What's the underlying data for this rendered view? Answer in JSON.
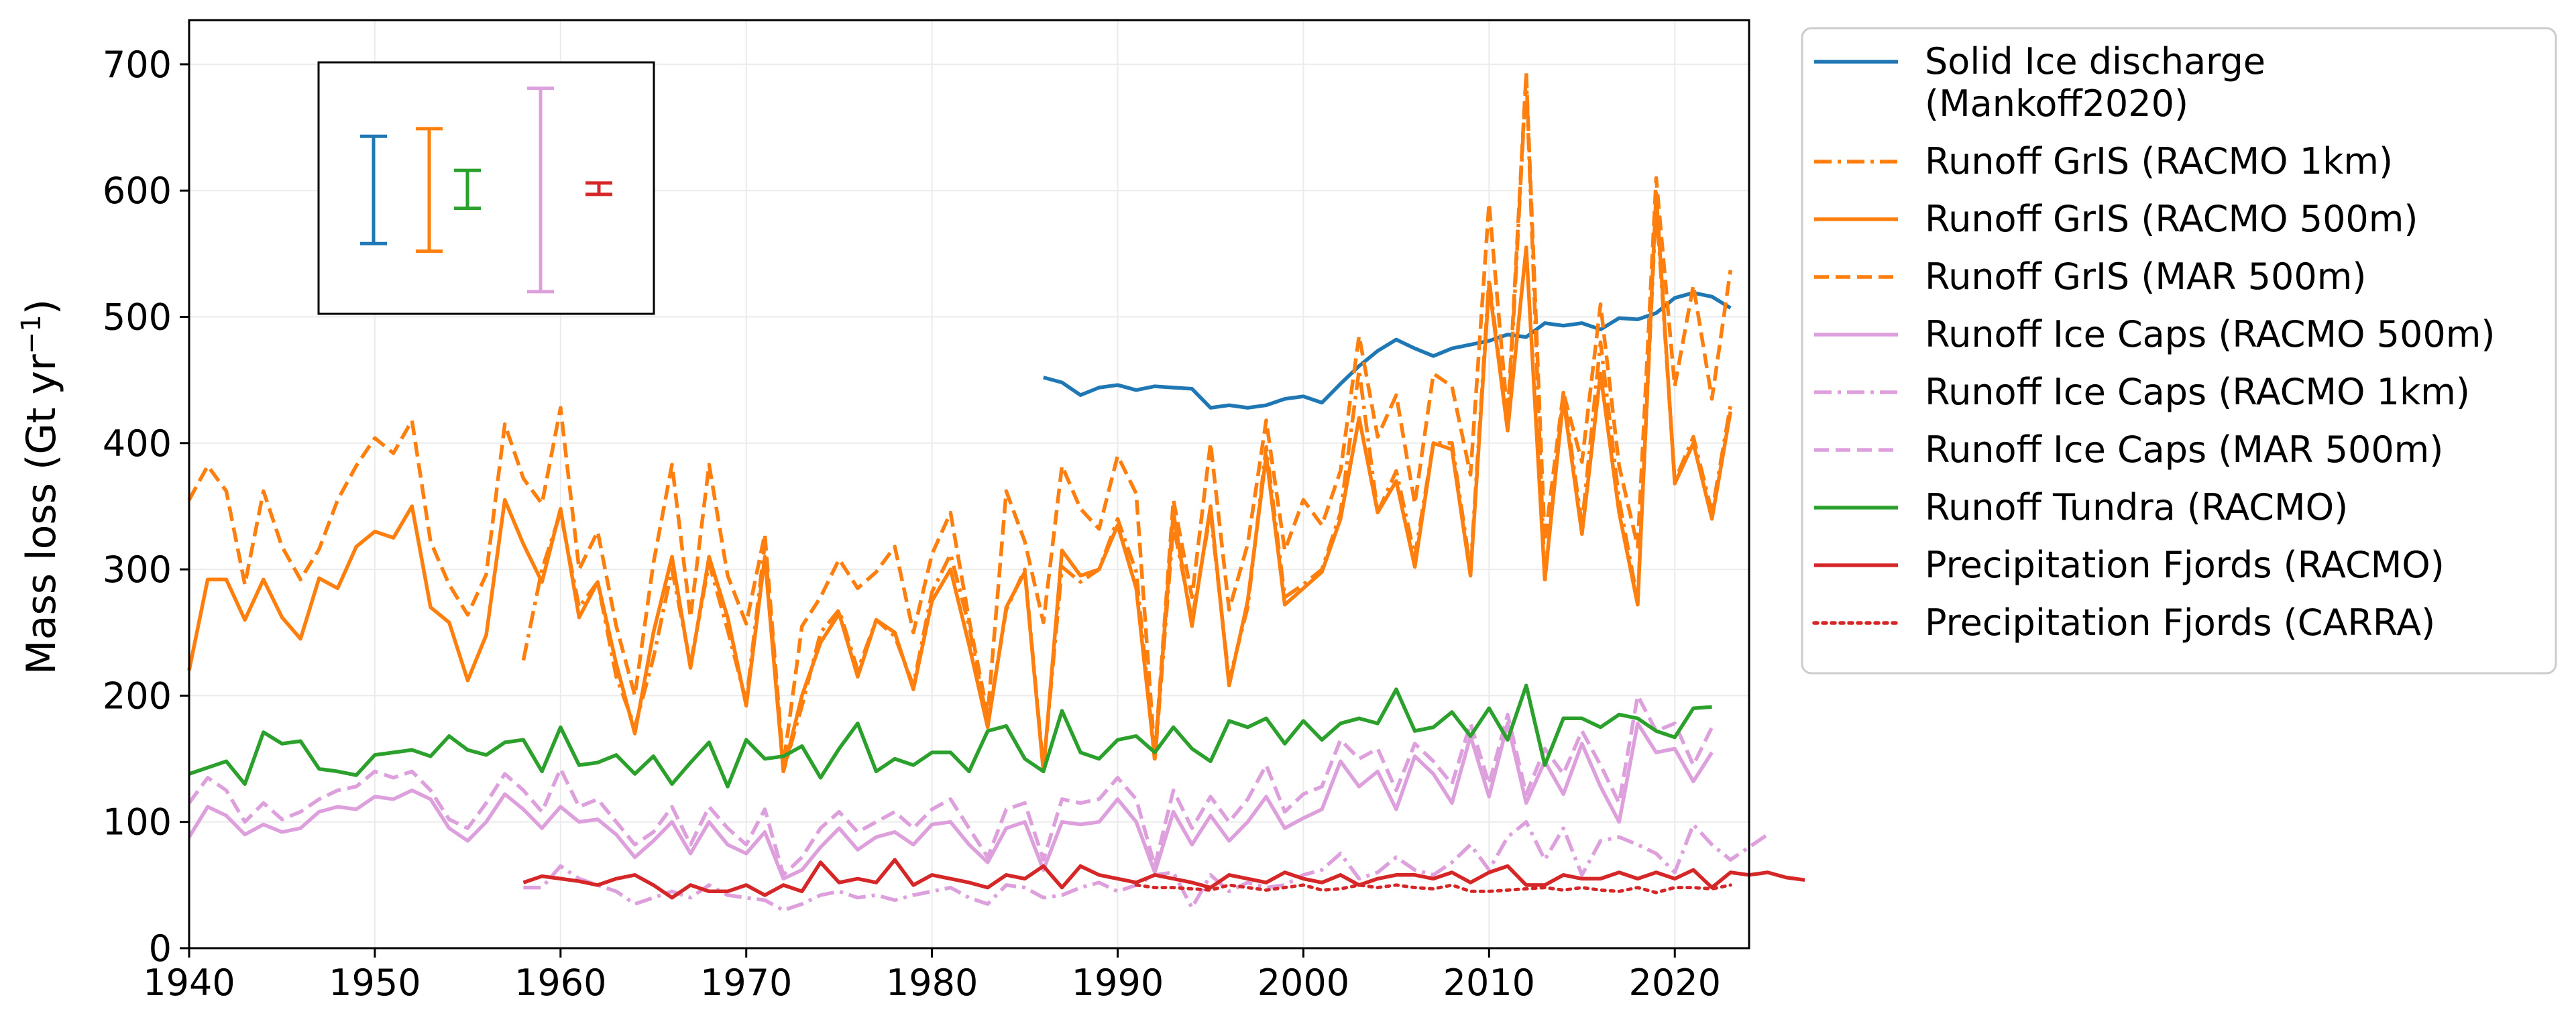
{
  "chart_data": {
    "type": "line",
    "ylabel": "Mass loss (Gt yr",
    "ylabel_sup": "−1",
    "ylabel_tail": ")",
    "xlim": [
      1940,
      2024
    ],
    "ylim": [
      0,
      735
    ],
    "x_ticks": [
      1940,
      1950,
      1960,
      1970,
      1980,
      1990,
      2000,
      2010,
      2020
    ],
    "y_ticks": [
      0,
      100,
      200,
      300,
      400,
      500,
      600,
      700
    ],
    "grid": true,
    "legend_position": "outside-right",
    "series": [
      {
        "name": "Solid Ice discharge\n(Mankoff2020)",
        "color": "#1f77b4",
        "style": "solid",
        "x_start": 1986,
        "values": [
          452,
          448,
          438,
          444,
          446,
          442,
          445,
          444,
          443,
          428,
          430,
          428,
          430,
          435,
          437,
          432,
          447,
          461,
          473,
          482,
          475,
          469,
          475,
          478,
          481,
          486,
          484,
          495,
          493,
          495,
          490,
          499,
          498,
          503,
          515,
          519,
          516,
          507
        ]
      },
      {
        "name": "Runoff GrIS (RACMO 1km)",
        "color": "#ff7f0e",
        "style": "dashdot",
        "x_start": 1958,
        "values": [
          228,
          300,
          345,
          270,
          290,
          215,
          175,
          230,
          300,
          225,
          305,
          252,
          195,
          320,
          140,
          192,
          250,
          268,
          220,
          260,
          247,
          208,
          282,
          312,
          255,
          178,
          268,
          300,
          142,
          302,
          290,
          300,
          340,
          298,
          148,
          335,
          260,
          345,
          212,
          270,
          397,
          278,
          288,
          300,
          345,
          458,
          345,
          378,
          310,
          400,
          400,
          300,
          530,
          410,
          690,
          290,
          440,
          335,
          480,
          355,
          275,
          590,
          370,
          405,
          345,
          430
        ]
      },
      {
        "name": "Runoff GrIS (RACMO 500m)",
        "color": "#ff7f0e",
        "style": "solid",
        "x_start": 1940,
        "values": [
          220,
          292,
          292,
          260,
          292,
          262,
          245,
          293,
          285,
          318,
          330,
          325,
          350,
          270,
          258,
          212,
          248,
          355,
          320,
          290,
          348,
          262,
          290,
          225,
          170,
          250,
          310,
          222,
          310,
          262,
          192,
          310,
          140,
          200,
          242,
          265,
          215,
          260,
          250,
          205,
          275,
          300,
          240,
          175,
          270,
          298,
          140,
          315,
          295,
          300,
          335,
          285,
          150,
          345,
          255,
          350,
          208,
          275,
          390,
          272,
          285,
          298,
          340,
          420,
          345,
          370,
          302,
          400,
          395,
          295,
          525,
          410,
          555,
          292,
          435,
          328,
          455,
          345,
          272,
          598,
          368,
          400,
          340,
          425
        ]
      },
      {
        "name": "Runoff GrIS (MAR 500m)",
        "color": "#ff7f0e",
        "style": "dashed",
        "x_start": 1940,
        "values": [
          355,
          382,
          362,
          288,
          362,
          318,
          292,
          316,
          355,
          382,
          404,
          392,
          418,
          322,
          288,
          264,
          296,
          415,
          372,
          352,
          428,
          300,
          330,
          255,
          200,
          305,
          383,
          262,
          383,
          295,
          257,
          328,
          145,
          255,
          278,
          308,
          285,
          298,
          318,
          250,
          312,
          345,
          260,
          185,
          362,
          322,
          258,
          382,
          348,
          332,
          390,
          360,
          152,
          355,
          278,
          400,
          268,
          320,
          418,
          315,
          355,
          335,
          378,
          485,
          405,
          438,
          352,
          455,
          445,
          375,
          590,
          420,
          693,
          322,
          440,
          385,
          510,
          382,
          318,
          610,
          445,
          525,
          435,
          537
        ]
      },
      {
        "name": "Runoff Ice Caps (RACMO 500m)",
        "color": "#dda0dd",
        "style": "solid",
        "x_start": 1940,
        "values": [
          88,
          112,
          105,
          90,
          98,
          92,
          95,
          108,
          112,
          110,
          120,
          118,
          125,
          118,
          95,
          85,
          100,
          122,
          110,
          95,
          112,
          100,
          102,
          90,
          72,
          85,
          100,
          75,
          100,
          82,
          75,
          92,
          55,
          62,
          80,
          95,
          78,
          88,
          92,
          82,
          98,
          100,
          82,
          68,
          95,
          100,
          62,
          100,
          98,
          100,
          118,
          100,
          60,
          108,
          82,
          105,
          85,
          100,
          120,
          95,
          103,
          110,
          148,
          128,
          140,
          110,
          152,
          138,
          115,
          168,
          120,
          178,
          115,
          148,
          122,
          162,
          128,
          100,
          178,
          155,
          158,
          132,
          155
        ]
      },
      {
        "name": "Runoff Ice Caps (RACMO 1km)",
        "color": "#dda0dd",
        "style": "dashdot",
        "x_start": 1958,
        "values": [
          48,
          48,
          65,
          55,
          50,
          45,
          35,
          40,
          45,
          40,
          50,
          42,
          40,
          38,
          30,
          35,
          42,
          45,
          40,
          42,
          38,
          42,
          45,
          48,
          40,
          35,
          50,
          48,
          40,
          42,
          48,
          52,
          45,
          50,
          58,
          60,
          32,
          58,
          45,
          52,
          48,
          50,
          58,
          62,
          75,
          55,
          60,
          72,
          62,
          58,
          68,
          82,
          62,
          88,
          100,
          70,
          95,
          58,
          85,
          88,
          82,
          75,
          60,
          98,
          82,
          70,
          80,
          90
        ]
      },
      {
        "name": "Runoff Ice Caps (MAR 500m)",
        "color": "#dda0dd",
        "style": "dashed",
        "x_start": 1940,
        "values": [
          115,
          135,
          125,
          100,
          115,
          102,
          108,
          118,
          125,
          128,
          140,
          135,
          140,
          125,
          102,
          95,
          115,
          138,
          125,
          108,
          142,
          112,
          118,
          100,
          82,
          92,
          112,
          82,
          112,
          95,
          82,
          110,
          58,
          72,
          95,
          108,
          92,
          100,
          108,
          95,
          110,
          118,
          95,
          72,
          110,
          115,
          70,
          118,
          115,
          118,
          135,
          118,
          65,
          125,
          95,
          120,
          100,
          118,
          145,
          108,
          122,
          128,
          165,
          150,
          158,
          125,
          162,
          148,
          130,
          178,
          130,
          185,
          122,
          158,
          138,
          172,
          145,
          115,
          200,
          172,
          178,
          145,
          175
        ]
      },
      {
        "name": "Runoff Tundra (RACMO)",
        "color": "#2ca02c",
        "style": "solid",
        "x_start": 1940,
        "values": [
          138,
          143,
          148,
          130,
          171,
          162,
          164,
          142,
          140,
          137,
          153,
          155,
          157,
          152,
          168,
          157,
          153,
          163,
          165,
          140,
          175,
          145,
          147,
          153,
          138,
          152,
          130,
          147,
          163,
          128,
          165,
          150,
          152,
          160,
          135,
          158,
          178,
          140,
          150,
          145,
          155,
          155,
          140,
          172,
          176,
          150,
          140,
          188,
          155,
          150,
          165,
          168,
          155,
          175,
          158,
          148,
          180,
          175,
          182,
          162,
          180,
          165,
          178,
          182,
          178,
          205,
          172,
          175,
          187,
          168,
          190,
          165,
          208,
          145,
          182,
          182,
          175,
          185,
          182,
          172,
          167,
          190,
          191
        ]
      },
      {
        "name": "Precipitation Fjords (RACMO)",
        "color": "#d62728",
        "style": "solid",
        "x_start": 1958,
        "values": [
          52,
          57,
          55,
          53,
          50,
          55,
          58,
          50,
          40,
          50,
          45,
          45,
          50,
          42,
          50,
          45,
          68,
          52,
          55,
          52,
          70,
          50,
          58,
          55,
          52,
          48,
          58,
          55,
          65,
          48,
          65,
          58,
          55,
          52,
          58,
          55,
          52,
          48,
          58,
          55,
          52,
          60,
          55,
          52,
          58,
          50,
          55,
          58,
          58,
          55,
          60,
          52,
          60,
          65,
          50,
          50,
          58,
          55,
          55,
          60,
          55,
          60,
          55,
          62,
          48,
          60,
          58,
          60,
          56,
          54
        ]
      },
      {
        "name": "Precipitation Fjords (CARRA)",
        "color": "#d62728",
        "style": "dotted",
        "x_start": 1991,
        "values": [
          50,
          48,
          48,
          47,
          46,
          50,
          48,
          46,
          48,
          50,
          46,
          47,
          50,
          48,
          50,
          48,
          47,
          50,
          45,
          45,
          46,
          47,
          48,
          46,
          48,
          46,
          45,
          48,
          44,
          48,
          48,
          47,
          50
        ]
      }
    ],
    "error_bars": [
      {
        "color": "#1f77b4",
        "low": 558,
        "high": 643
      },
      {
        "color": "#ff7f0e",
        "low": 552,
        "high": 649
      },
      {
        "color": "#2ca02c",
        "low": 586,
        "high": 616
      },
      {
        "color": "#dda0dd",
        "low": 520,
        "high": 681
      },
      {
        "color": "#d62728",
        "low": 597,
        "high": 606
      }
    ]
  }
}
